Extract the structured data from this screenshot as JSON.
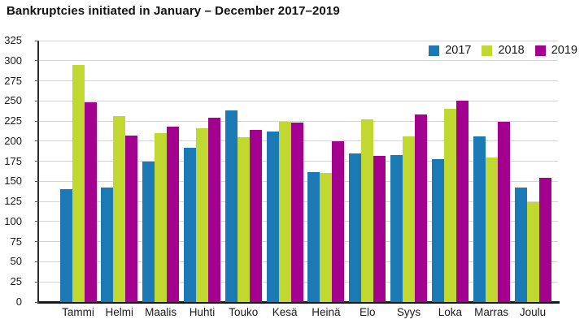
{
  "page": {
    "title": "Bankruptcies initiated in January – December 2017–2019"
  },
  "chart_data": {
    "type": "bar",
    "title": "Bankruptcies initiated in January – December 2017–2019",
    "categories": [
      "Tammi",
      "Helmi",
      "Maalis",
      "Huhti",
      "Touko",
      "Kesä",
      "Heinä",
      "Elo",
      "Syys",
      "Loka",
      "Marras",
      "Joulu"
    ],
    "series": [
      {
        "name": "2017",
        "color": "#1b79b5",
        "values": [
          140,
          142,
          175,
          192,
          238,
          212,
          162,
          185,
          183,
          178,
          206,
          142
        ]
      },
      {
        "name": "2018",
        "color": "#c1d831",
        "values": [
          295,
          231,
          210,
          216,
          205,
          224,
          161,
          227,
          206,
          240,
          180,
          124
        ]
      },
      {
        "name": "2019",
        "color": "#a4008f",
        "values": [
          248,
          207,
          218,
          229,
          214,
          223,
          200,
          182,
          233,
          250,
          224,
          154
        ]
      }
    ],
    "xlabel": "",
    "ylabel": "",
    "ylim": [
      0,
      325
    ],
    "ytick_step": 25,
    "yticks": [
      0,
      25,
      50,
      75,
      100,
      125,
      150,
      175,
      200,
      225,
      250,
      275,
      300,
      325
    ],
    "grid": true,
    "legend_position": "top-right",
    "colors": {
      "grid": "#d4d4d4",
      "axis": "#1a1a1a",
      "text": "#1a1a1a",
      "background": "#ffffff"
    }
  }
}
